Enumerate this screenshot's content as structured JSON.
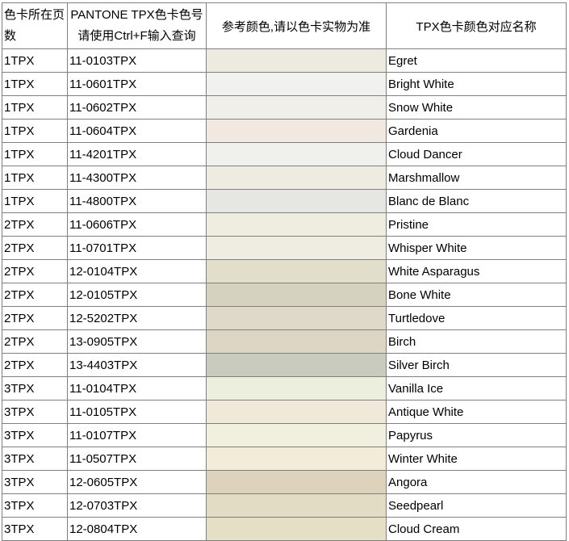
{
  "header": {
    "col_page": "色卡所在页数",
    "col_code_line1": "PANTONE TPX色卡色号",
    "col_code_line2": "请使用Ctrl+F输入查询",
    "col_swatch": "参考颜色,请以色卡实物为准",
    "col_name": "TPX色卡颜色对应名称"
  },
  "rows": [
    {
      "page": "1TPX",
      "code": "11-0103TPX",
      "swatch": "#EDEBE0",
      "name": "Egret"
    },
    {
      "page": "1TPX",
      "code": "11-0601TPX",
      "swatch": "#F1F1EF",
      "name": "Bright White"
    },
    {
      "page": "1TPX",
      "code": "11-0602TPX",
      "swatch": "#F0EFE9",
      "name": "Snow White"
    },
    {
      "page": "1TPX",
      "code": "11-0604TPX",
      "swatch": "#F0E8E1",
      "name": "Gardenia"
    },
    {
      "page": "1TPX",
      "code": "11-4201TPX",
      "swatch": "#F0F0ED",
      "name": "Cloud Dancer"
    },
    {
      "page": "1TPX",
      "code": "11-4300TPX",
      "swatch": "#EEECE1",
      "name": "Marshmallow"
    },
    {
      "page": "1TPX",
      "code": "11-4800TPX",
      "swatch": "#E6E7E2",
      "name": "Blanc de Blanc"
    },
    {
      "page": "2TPX",
      "code": "11-0606TPX",
      "swatch": "#EFEDE0",
      "name": "Pristine"
    },
    {
      "page": "2TPX",
      "code": "11-0701TPX",
      "swatch": "#EFEDE2",
      "name": "Whisper White"
    },
    {
      "page": "2TPX",
      "code": "12-0104TPX",
      "swatch": "#E1DFCC",
      "name": "White Asparagus"
    },
    {
      "page": "2TPX",
      "code": "12-0105TPX",
      "swatch": "#D5D2BF",
      "name": "Bone White"
    },
    {
      "page": "2TPX",
      "code": "12-5202TPX",
      "swatch": "#DFD9C9",
      "name": "Turtledove"
    },
    {
      "page": "2TPX",
      "code": "13-0905TPX",
      "swatch": "#DDD6C4",
      "name": "Birch"
    },
    {
      "page": "2TPX",
      "code": "13-4403TPX",
      "swatch": "#C9CBBF",
      "name": "Silver Birch"
    },
    {
      "page": "3TPX",
      "code": "11-0104TPX",
      "swatch": "#ECEEDE",
      "name": "Vanilla Ice"
    },
    {
      "page": "3TPX",
      "code": "11-0105TPX",
      "swatch": "#F0E9DA",
      "name": "Antique White"
    },
    {
      "page": "3TPX",
      "code": "11-0107TPX",
      "swatch": "#F1EFDE",
      "name": "Papyrus"
    },
    {
      "page": "3TPX",
      "code": "11-0507TPX",
      "swatch": "#F2ECD9",
      "name": "Winter White"
    },
    {
      "page": "3TPX",
      "code": "12-0605TPX",
      "swatch": "#DDD2BC",
      "name": "Angora"
    },
    {
      "page": "3TPX",
      "code": "12-0703TPX",
      "swatch": "#E2DCC4",
      "name": "Seedpearl"
    },
    {
      "page": "3TPX",
      "code": "12-0804TPX",
      "swatch": "#E5DFC6",
      "name": "Cloud Cream"
    }
  ],
  "colors": {
    "grid_border": "#7F7F7F",
    "text": "#000000",
    "background": "#FFFFFF"
  }
}
